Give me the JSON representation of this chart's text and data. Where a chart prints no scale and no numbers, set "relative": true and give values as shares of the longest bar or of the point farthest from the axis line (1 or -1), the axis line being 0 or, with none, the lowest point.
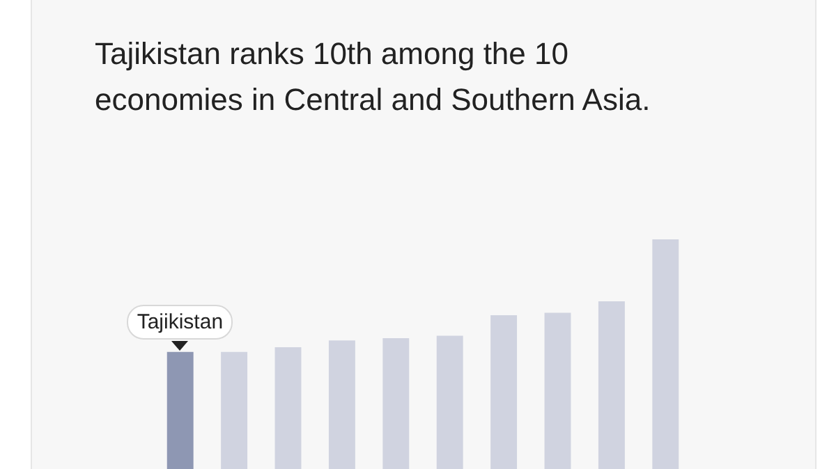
{
  "chart_data": {
    "type": "bar",
    "title": "Tajikistan ranks 10th among the 10 economies in Central and Southern Asia.",
    "categories": [
      "Tajikistan",
      null,
      null,
      null,
      null,
      null,
      null,
      null,
      null,
      null
    ],
    "values": [
      0.51,
      0.51,
      0.53,
      0.56,
      0.57,
      0.58,
      0.67,
      0.68,
      0.73,
      1
    ],
    "colors": [
      "#8e97b3",
      "#d0d3e0",
      "#d0d3e0",
      "#d0d3e0",
      "#d0d3e0",
      "#d0d3e0",
      "#d0d3e0",
      "#d0d3e0",
      "#d0d3e0",
      "#d0d3e0"
    ],
    "relative": true
  }
}
